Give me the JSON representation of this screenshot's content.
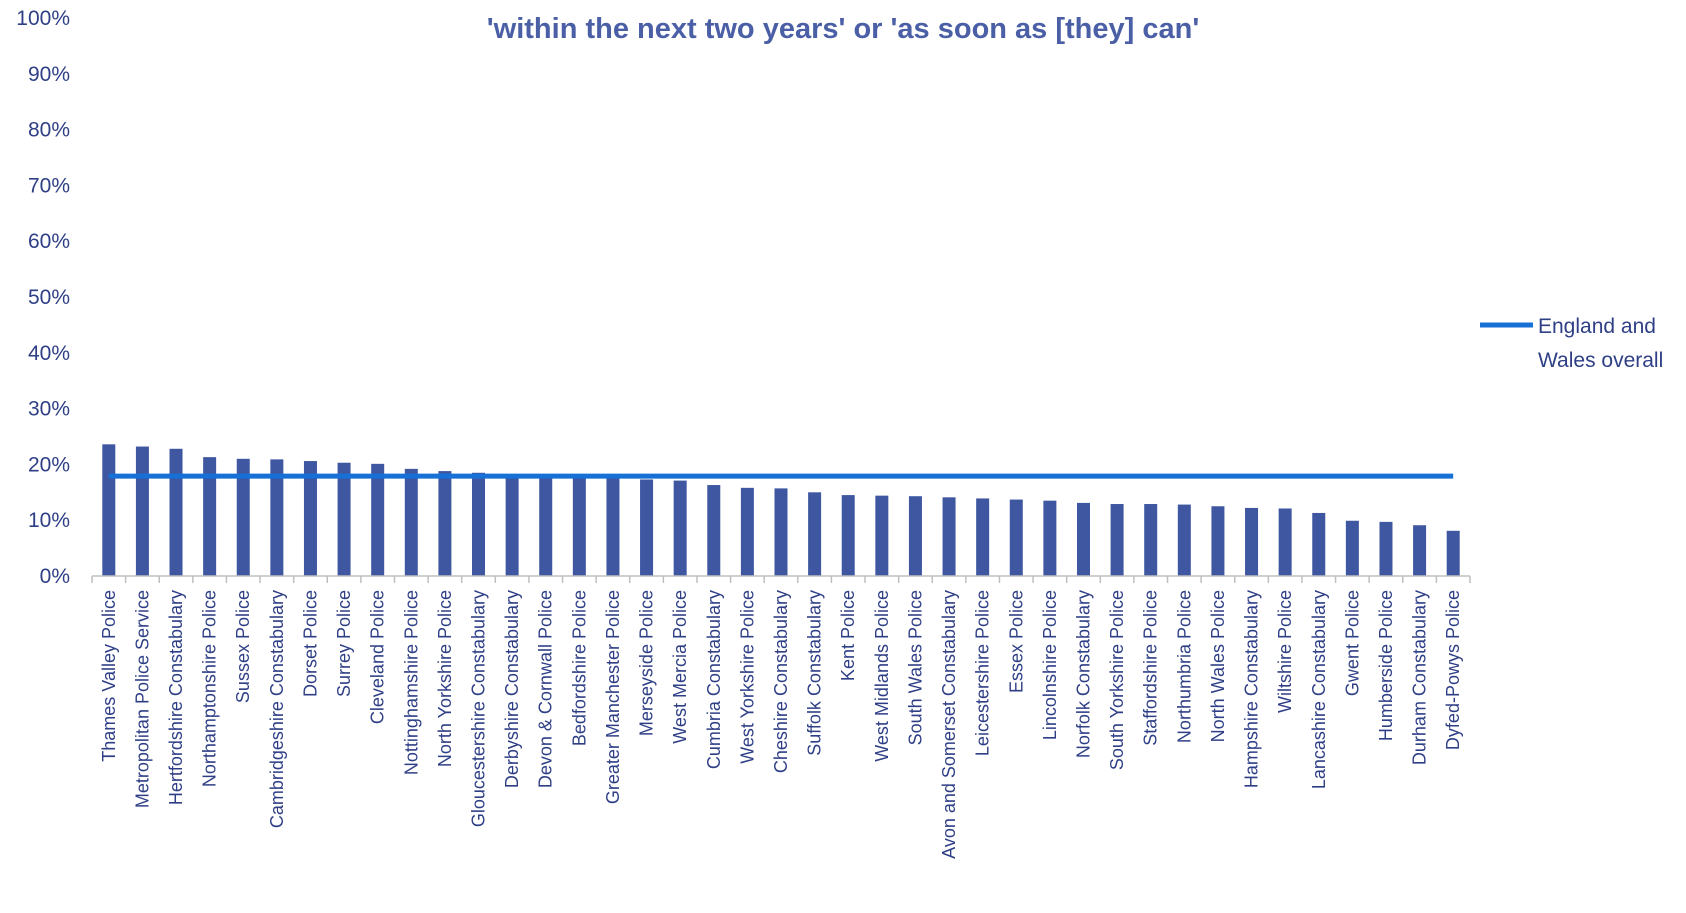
{
  "chart_data": {
    "type": "bar",
    "title": "'within the next two years' or 'as soon as [they] can'",
    "xlabel": "",
    "ylabel": "",
    "ylim": [
      0,
      100
    ],
    "y_ticks": [
      "0%",
      "10%",
      "20%",
      "30%",
      "40%",
      "50%",
      "60%",
      "70%",
      "80%",
      "90%",
      "100%"
    ],
    "grid": false,
    "legend_position": "right",
    "categories": [
      "Thames Valley Police",
      "Metropolitan Police Service",
      "Hertfordshire Constabulary",
      "Northamptonshire Police",
      "Sussex Police",
      "Cambridgeshire Constabulary",
      "Dorset Police",
      "Surrey Police",
      "Cleveland Police",
      "Nottinghamshire Police",
      "North Yorkshire Police",
      "Gloucestershire Constabulary",
      "Derbyshire Constabulary",
      "Devon & Cornwall Police",
      "Bedfordshire Police",
      "Greater Manchester Police",
      "Merseyside Police",
      "West Mercia Police",
      "Cumbria Constabulary",
      "West Yorkshire Police",
      "Cheshire Constabulary",
      "Suffolk Constabulary",
      "Kent Police",
      "West Midlands Police",
      "South Wales Police",
      "Avon and Somerset Constabulary",
      "Leicestershire Police",
      "Essex Police",
      "Lincolnshire Police",
      "Norfolk Constabulary",
      "South Yorkshire Police",
      "Staffordshire Police",
      "Northumbria Police",
      "North Wales Police",
      "Hampshire Constabulary",
      "Wiltshire Police",
      "Lancashire Constabulary",
      "Gwent Police",
      "Humberside Police",
      "Durham Constabulary",
      "Dyfed-Powys Police"
    ],
    "series": [
      {
        "type": "bar",
        "color": "#3E57A0",
        "values": [
          23.6,
          23.2,
          22.8,
          21.3,
          21.0,
          20.9,
          20.6,
          20.3,
          20.1,
          19.2,
          18.8,
          18.5,
          18.2,
          18.0,
          17.9,
          17.7,
          17.3,
          17.1,
          16.3,
          15.8,
          15.7,
          15.0,
          14.5,
          14.4,
          14.3,
          14.1,
          13.9,
          13.7,
          13.5,
          13.1,
          12.9,
          12.9,
          12.8,
          12.5,
          12.2,
          12.1,
          11.3,
          9.9,
          9.7,
          9.1,
          8.1
        ]
      },
      {
        "type": "line",
        "name": "England and Wales overall",
        "color": "#1670D6",
        "value": 17.9
      }
    ]
  }
}
